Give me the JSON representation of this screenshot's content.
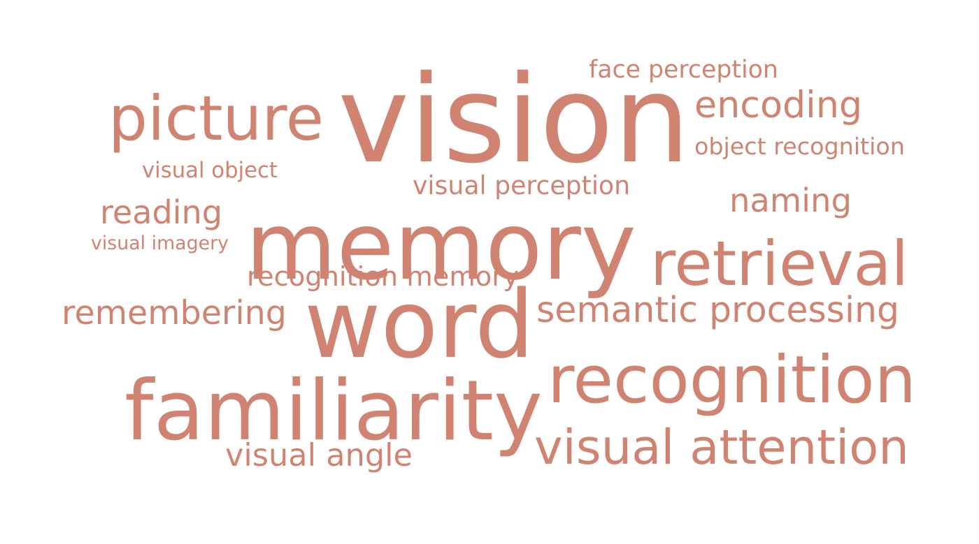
{
  "colors": {
    "text": "#D08371",
    "background": "#FFFFFF"
  },
  "words": [
    {
      "id": "vision",
      "text": "vision"
    },
    {
      "id": "memory",
      "text": "memory"
    },
    {
      "id": "word",
      "text": "word"
    },
    {
      "id": "familiarity",
      "text": "familiarity"
    },
    {
      "id": "recognition",
      "text": "recognition"
    },
    {
      "id": "retrieval",
      "text": "retrieval"
    },
    {
      "id": "picture",
      "text": "picture"
    },
    {
      "id": "visual-attention",
      "text": "visual attention"
    },
    {
      "id": "semantic-processing",
      "text": "semantic processing"
    },
    {
      "id": "encoding",
      "text": "encoding"
    },
    {
      "id": "remembering",
      "text": "remembering"
    },
    {
      "id": "reading",
      "text": "reading"
    },
    {
      "id": "naming",
      "text": "naming"
    },
    {
      "id": "visual-angle",
      "text": "visual angle"
    },
    {
      "id": "recognition-memory",
      "text": "recognition memory"
    },
    {
      "id": "visual-perception",
      "text": "visual perception"
    },
    {
      "id": "face-perception",
      "text": "face perception"
    },
    {
      "id": "object-recognition",
      "text": "object recognition"
    },
    {
      "id": "visual-object",
      "text": "visual object"
    },
    {
      "id": "visual-imagery",
      "text": "visual imagery"
    }
  ]
}
